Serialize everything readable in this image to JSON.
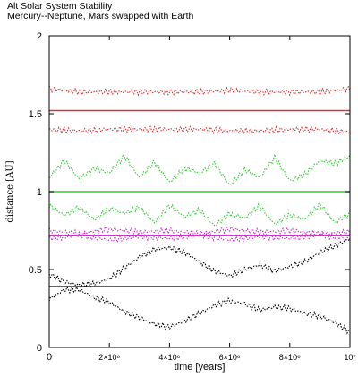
{
  "chart_data": {
    "type": "line",
    "title_lines": [
      "Alt Solar System Stability",
      "Mercury--Neptune, Mars swapped with Earth"
    ],
    "xlabel": "time [years]",
    "ylabel": "distance [AU]",
    "xlim": [
      0,
      10000000
    ],
    "ylim": [
      0,
      2
    ],
    "y_ticks": [
      0,
      0.5,
      1,
      1.5,
      2
    ],
    "y_tick_labels": [
      "0",
      "0.5",
      "1",
      "1.5",
      "2"
    ],
    "x_ticks": [
      0,
      2000000,
      4000000,
      6000000,
      8000000,
      10000000
    ],
    "x_tick_labels": [
      "0",
      "2×10⁶",
      "4×10⁶",
      "6×10⁶",
      "8×10⁶",
      "10⁷"
    ],
    "grid": false,
    "series": [
      {
        "color": "#e03030",
        "style": "solid",
        "x": [
          0,
          10000000
        ],
        "y": [
          1.52,
          1.52
        ]
      },
      {
        "color": "#e03030",
        "style": "dotted",
        "x": [
          0,
          1000000,
          2000000,
          3000000,
          4000000,
          5000000,
          6000000,
          7000000,
          8000000,
          9000000,
          10000000
        ],
        "y": [
          1.66,
          1.64,
          1.64,
          1.64,
          1.64,
          1.64,
          1.65,
          1.64,
          1.64,
          1.64,
          1.66
        ]
      },
      {
        "color": "#e03030",
        "style": "dotted",
        "x": [
          0,
          1000000,
          2000000,
          3000000,
          4000000,
          5000000,
          6000000,
          7000000,
          8000000,
          9000000,
          10000000
        ],
        "y": [
          1.4,
          1.39,
          1.4,
          1.4,
          1.4,
          1.4,
          1.39,
          1.39,
          1.4,
          1.4,
          1.38
        ]
      },
      {
        "color": "#33cc33",
        "style": "solid",
        "x": [
          0,
          10000000
        ],
        "y": [
          1.0,
          1.0
        ]
      },
      {
        "color": "#33cc33",
        "style": "dotted",
        "x": [
          0,
          500000,
          1000000,
          1500000,
          2000000,
          2500000,
          3000000,
          3500000,
          4000000,
          4500000,
          5000000,
          5500000,
          6000000,
          6500000,
          7000000,
          7500000,
          8000000,
          8500000,
          9000000,
          9500000,
          10000000
        ],
        "y": [
          1.09,
          1.2,
          1.08,
          1.15,
          1.12,
          1.23,
          1.09,
          1.19,
          1.06,
          1.15,
          1.12,
          1.18,
          1.04,
          1.14,
          1.09,
          1.22,
          1.07,
          1.11,
          1.2,
          1.18,
          1.23
        ]
      },
      {
        "color": "#33cc33",
        "style": "dotted",
        "x": [
          0,
          500000,
          1000000,
          1500000,
          2000000,
          2500000,
          3000000,
          3500000,
          4000000,
          4500000,
          5000000,
          5500000,
          6000000,
          6500000,
          7000000,
          7500000,
          8000000,
          8500000,
          9000000,
          9500000,
          10000000
        ],
        "y": [
          0.91,
          0.85,
          0.9,
          0.82,
          0.89,
          0.86,
          0.9,
          0.8,
          0.91,
          0.84,
          0.88,
          0.78,
          0.86,
          0.83,
          0.91,
          0.79,
          0.85,
          0.82,
          0.92,
          0.8,
          0.86
        ]
      },
      {
        "color": "#cc33cc",
        "style": "solid",
        "x": [
          0,
          10000000
        ],
        "y": [
          0.72,
          0.72
        ]
      },
      {
        "color": "#cc33cc",
        "style": "dotted",
        "x": [
          0,
          1000000,
          2000000,
          3000000,
          4000000,
          5000000,
          6000000,
          7000000,
          8000000,
          9000000,
          10000000
        ],
        "y": [
          0.75,
          0.73,
          0.76,
          0.74,
          0.75,
          0.73,
          0.76,
          0.74,
          0.75,
          0.73,
          0.74
        ]
      },
      {
        "color": "#cc33cc",
        "style": "dotted",
        "x": [
          0,
          1000000,
          2000000,
          3000000,
          4000000,
          5000000,
          6000000,
          7000000,
          8000000,
          9000000,
          10000000
        ],
        "y": [
          0.7,
          0.72,
          0.69,
          0.71,
          0.7,
          0.72,
          0.69,
          0.71,
          0.7,
          0.72,
          0.7
        ]
      },
      {
        "color": "#000000",
        "style": "solid",
        "x": [
          0,
          10000000
        ],
        "y": [
          0.39,
          0.39
        ]
      },
      {
        "color": "#000000",
        "style": "dotted",
        "x": [
          0,
          500000,
          1000000,
          1500000,
          2000000,
          2500000,
          3000000,
          3500000,
          4000000,
          4500000,
          5000000,
          5500000,
          6000000,
          6500000,
          7000000,
          7500000,
          8000000,
          8500000,
          9000000,
          9500000,
          10000000
        ],
        "y": [
          0.47,
          0.42,
          0.4,
          0.41,
          0.44,
          0.51,
          0.58,
          0.63,
          0.64,
          0.61,
          0.55,
          0.49,
          0.46,
          0.5,
          0.53,
          0.49,
          0.52,
          0.55,
          0.61,
          0.65,
          0.7
        ]
      },
      {
        "color": "#000000",
        "style": "dotted",
        "x": [
          0,
          500000,
          1000000,
          1500000,
          2000000,
          2500000,
          3000000,
          3500000,
          4000000,
          4500000,
          5000000,
          5500000,
          6000000,
          6500000,
          7000000,
          7500000,
          8000000,
          8500000,
          9000000,
          9500000,
          10000000
        ],
        "y": [
          0.31,
          0.37,
          0.37,
          0.32,
          0.29,
          0.23,
          0.19,
          0.15,
          0.13,
          0.17,
          0.22,
          0.27,
          0.3,
          0.28,
          0.24,
          0.26,
          0.25,
          0.22,
          0.2,
          0.16,
          0.1
        ]
      }
    ]
  }
}
